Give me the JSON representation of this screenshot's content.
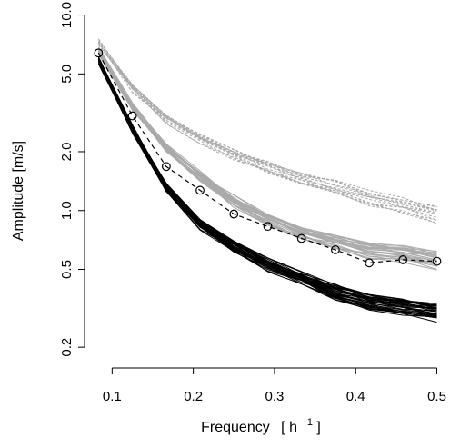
{
  "chart_data": {
    "type": "line",
    "title": "",
    "xlabel": "Frequency",
    "xlabel_unit": "[ h",
    "xlabel_unit_exp": "−1",
    "xlabel_unit_close": " ]",
    "ylabel": "Amplitude [m/s]",
    "y_scale": "log",
    "xlim": [
      0.075,
      0.505
    ],
    "ylim": [
      0.18,
      10.5
    ],
    "x_ticks": [
      0.1,
      0.2,
      0.3,
      0.4,
      0.5
    ],
    "x_tick_labels": [
      "0.1",
      "0.2",
      "0.3",
      "0.4",
      "0.5"
    ],
    "y_ticks": [
      0.2,
      0.5,
      1.0,
      2.0,
      5.0,
      10.0
    ],
    "y_tick_labels": [
      "0.2",
      "0.5",
      "1.0",
      "2.0",
      "5.0",
      "10.0"
    ],
    "grid": false,
    "legend": "none",
    "x": [
      0.0833,
      0.125,
      0.1667,
      0.2083,
      0.25,
      0.2917,
      0.3333,
      0.375,
      0.4167,
      0.4583,
      0.5
    ],
    "series": [
      {
        "style": "gray-dotted",
        "color": "#aaaaaa",
        "count": 14,
        "values": [
          7.2,
          4.2,
          2.95,
          2.35,
          1.95,
          1.65,
          1.45,
          1.3,
          1.15,
          1.05,
          0.95
        ]
      },
      {
        "style": "gray-solid",
        "color": "#aaaaaa",
        "count": 24,
        "values": [
          6.6,
          3.4,
          2.1,
          1.5,
          1.12,
          0.9,
          0.76,
          0.68,
          0.62,
          0.6,
          0.56
        ]
      },
      {
        "style": "black-solid",
        "color": "#000000",
        "count": 30,
        "values": [
          5.9,
          2.6,
          1.3,
          0.85,
          0.65,
          0.53,
          0.45,
          0.38,
          0.34,
          0.32,
          0.3
        ]
      },
      {
        "style": "black-dashed-circles",
        "color": "#000000",
        "count": 1,
        "values": [
          6.4,
          3.05,
          1.68,
          1.27,
          0.96,
          0.83,
          0.72,
          0.63,
          0.54,
          0.56,
          0.55
        ]
      }
    ]
  }
}
